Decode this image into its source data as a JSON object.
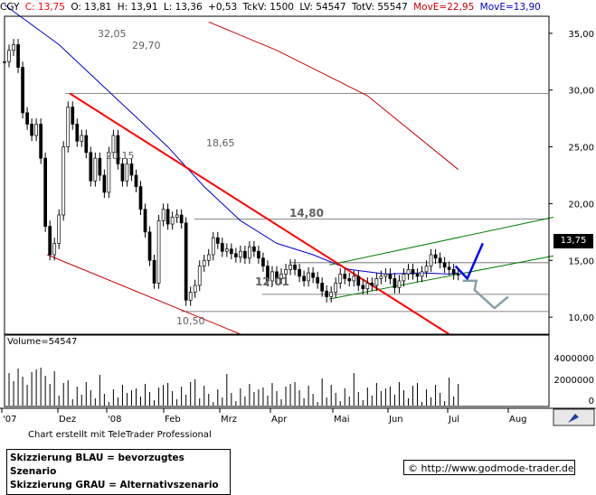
{
  "header": {
    "symbol": "CGY",
    "close": "C: 13,75",
    "open": "O: 13,81",
    "high": "H: 13,91",
    "low": "L: 13,36",
    "change": "+0,53",
    "tickvol": "TckV: 1500",
    "lv": "LV: 54547",
    "totv": "TotV: 55547",
    "move1": "MovE=22,95",
    "move2": "MovE=13,90"
  },
  "colors": {
    "price": "#000000",
    "mave_long": "#cc0000",
    "mave_short": "#0000cc",
    "trend_red": "#ff0000",
    "channel_green": "#008000",
    "scenario_blue": "#0000ff",
    "scenario_grey": "#88a0a8",
    "down_channel": "#cc0000"
  },
  "chart_data": {
    "type": "candlestick",
    "x_labels": [
      "'07",
      "Dez",
      "'08",
      "Feb",
      "Mrz",
      "Apr",
      "Mai",
      "Jun",
      "Jul",
      "Aug"
    ],
    "y_ticks": [
      "35,00",
      "30,00",
      "25,00",
      "20,00",
      "15,00",
      "10,00"
    ],
    "ylim": [
      8.5,
      36.5
    ],
    "volume_ticks": [
      "4000000",
      "2000000",
      "0"
    ],
    "volume_label": "Volume=54547",
    "last_price": "13,75",
    "annotations": [
      "32,05",
      "29,70",
      "20,15",
      "18,65",
      "14,80",
      "12,01",
      "10,50"
    ],
    "horizontal_levels": [
      29.7,
      18.65,
      14.8,
      12.01,
      10.5
    ],
    "price_series": [
      [
        0,
        32.5
      ],
      [
        5,
        33.5
      ],
      [
        10,
        34
      ],
      [
        15,
        32
      ],
      [
        20,
        28
      ],
      [
        25,
        27
      ],
      [
        30,
        26
      ],
      [
        35,
        27
      ],
      [
        40,
        24
      ],
      [
        45,
        18
      ],
      [
        50,
        15.5
      ],
      [
        55,
        16.5
      ],
      [
        60,
        19
      ],
      [
        65,
        25
      ],
      [
        70,
        28.5
      ],
      [
        75,
        27
      ],
      [
        80,
        25.5
      ],
      [
        85,
        26
      ],
      [
        90,
        24.5
      ],
      [
        95,
        22
      ],
      [
        100,
        24
      ],
      [
        105,
        22.5
      ],
      [
        110,
        21
      ],
      [
        115,
        24.5
      ],
      [
        120,
        26
      ],
      [
        125,
        23.5
      ],
      [
        130,
        22
      ],
      [
        135,
        23.5
      ],
      [
        140,
        22.5
      ],
      [
        145,
        21.5
      ],
      [
        150,
        19.5
      ],
      [
        155,
        17.5
      ],
      [
        160,
        15
      ],
      [
        165,
        13
      ],
      [
        170,
        18.5
      ],
      [
        175,
        19.5
      ],
      [
        180,
        18.2
      ],
      [
        185,
        18.8
      ],
      [
        190,
        19
      ],
      [
        195,
        18.3
      ],
      [
        200,
        11.5
      ],
      [
        205,
        12.2
      ],
      [
        210,
        12.8
      ],
      [
        215,
        14.5
      ],
      [
        220,
        15
      ],
      [
        225,
        15.5
      ],
      [
        230,
        17
      ],
      [
        235,
        16.5
      ],
      [
        240,
        15.8
      ],
      [
        245,
        16
      ],
      [
        250,
        15.6
      ],
      [
        255,
        15.3
      ],
      [
        260,
        15.8
      ],
      [
        265,
        15.2
      ],
      [
        270,
        16.2
      ],
      [
        275,
        15.8
      ],
      [
        280,
        15.2
      ],
      [
        285,
        14.5
      ],
      [
        290,
        13.2
      ],
      [
        295,
        14
      ],
      [
        300,
        13.4
      ],
      [
        305,
        13.8
      ],
      [
        310,
        14.2
      ],
      [
        315,
        14.6
      ],
      [
        320,
        14.2
      ],
      [
        325,
        13.6
      ],
      [
        330,
        13.2
      ],
      [
        335,
        13.9
      ],
      [
        340,
        13.5
      ],
      [
        345,
        13
      ],
      [
        350,
        12.3
      ],
      [
        355,
        11.8
      ],
      [
        360,
        12.2
      ],
      [
        365,
        13
      ],
      [
        370,
        13.8
      ],
      [
        375,
        13.4
      ],
      [
        380,
        13.2
      ],
      [
        385,
        13.6
      ],
      [
        390,
        12.8
      ],
      [
        395,
        12.5
      ],
      [
        400,
        13
      ],
      [
        405,
        12.8
      ],
      [
        410,
        13.4
      ],
      [
        415,
        13.6
      ],
      [
        420,
        13.8
      ],
      [
        425,
        13.4
      ],
      [
        430,
        12.6
      ],
      [
        435,
        13.2
      ],
      [
        440,
        13.8
      ],
      [
        445,
        14.2
      ],
      [
        450,
        13.8
      ],
      [
        455,
        13.6
      ],
      [
        460,
        14
      ],
      [
        465,
        14.5
      ],
      [
        470,
        15.5
      ],
      [
        475,
        15.2
      ],
      [
        480,
        14.8
      ],
      [
        485,
        14.4
      ],
      [
        490,
        14.2
      ],
      [
        495,
        13.8
      ],
      [
        500,
        13.75
      ]
    ],
    "mave_long": [
      [
        225,
        36
      ],
      [
        300,
        33.5
      ],
      [
        400,
        29.5
      ],
      [
        500,
        23
      ]
    ],
    "mave_short": [
      [
        0,
        37.5
      ],
      [
        60,
        34
      ],
      [
        100,
        31
      ],
      [
        140,
        28
      ],
      [
        180,
        25
      ],
      [
        220,
        21.5
      ],
      [
        260,
        18.5
      ],
      [
        300,
        16.5
      ],
      [
        340,
        15.5
      ],
      [
        380,
        14.2
      ],
      [
        420,
        13.8
      ],
      [
        460,
        13.9
      ],
      [
        490,
        13.8
      ],
      [
        500,
        13.9
      ]
    ],
    "trend_line_red": [
      [
        72,
        29.7
      ],
      [
        490,
        8.5
      ]
    ],
    "down_channel_lower": [
      [
        47,
        15.5
      ],
      [
        260,
        8.5
      ]
    ],
    "up_channel_upper": [
      [
        358,
        14.6
      ],
      [
        605,
        18.8
      ]
    ],
    "up_channel_lower": [
      [
        358,
        11.6
      ],
      [
        605,
        15.4
      ]
    ],
    "scenario_blue": [
      [
        497,
        14.5
      ],
      [
        510,
        13.4
      ],
      [
        527,
        16.5
      ]
    ],
    "scenario_grey": [
      [
        505,
        13.2
      ],
      [
        520,
        13.2
      ],
      [
        518,
        12.4
      ],
      [
        540,
        10.8
      ],
      [
        555,
        11.8
      ]
    ]
  },
  "footer": {
    "credit": "Chart erstellt mit TeleTrader Professional",
    "legend_blue": "Skizzierung BLAU = bevorzugtes Szenario",
    "legend_grey": "Skizzierung GRAU = Alternativszenario",
    "source": "© http://www.godmode-trader.de"
  }
}
